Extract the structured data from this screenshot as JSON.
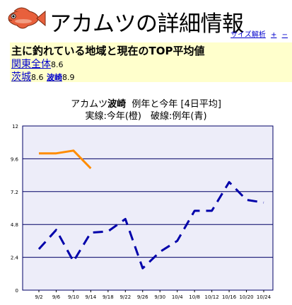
{
  "header": {
    "title": "アカムツの詳細情報",
    "links": [
      "サイズ解析",
      "+",
      "−"
    ]
  },
  "info": {
    "heading": "主に釣れている地域と現在のTOP平均値",
    "regions": [
      {
        "name": "関東全体",
        "value": "8.6"
      },
      {
        "name": "茨城",
        "value": "8.6"
      },
      {
        "name": "波崎",
        "value": "8.9"
      }
    ]
  },
  "chart_title": {
    "line1_prefix": "アカムツ",
    "line1_bold": "波崎",
    "line1_suffix": "例年と今年 [4日平均]",
    "line2": "実線:今年(橙)　破線:例年(青)"
  },
  "colors": {
    "this_year": "#ff8c00",
    "average": "#0000aa",
    "plot_bg": "#ededf9",
    "grid": "#000066"
  },
  "chart_data": {
    "type": "line",
    "title": "アカムツ波崎 例年と今年 [4日平均]",
    "subtitle": "実線:今年(橙) 破線:例年(青)",
    "categories": [
      "9/2",
      "9/6",
      "9/10",
      "9/14",
      "9/18",
      "9/22",
      "9/26",
      "9/30",
      "10/4",
      "10/8",
      "10/12",
      "10/16",
      "10/20",
      "10/24"
    ],
    "x_tick_labels": [
      "9/2",
      "9/6",
      "9/10",
      "9/14",
      "9/18",
      "9/22",
      "9/26",
      "9/30",
      "10/4",
      "10/8",
      "10/12",
      "10/16",
      "10/20",
      "10/24"
    ],
    "ylim": [
      0,
      12
    ],
    "yticks": [
      "0",
      "2.4",
      "4.8",
      "7.2",
      "9.6",
      "12"
    ],
    "grid": true,
    "series": [
      {
        "name": "今年",
        "style": "solid",
        "color": "#ff8c00",
        "values": [
          10.0,
          10.0,
          10.2,
          8.9,
          null,
          null,
          null,
          null,
          null,
          null,
          null,
          null,
          null,
          null
        ]
      },
      {
        "name": "例年",
        "style": "dashed",
        "color": "#0000aa",
        "values": [
          3.0,
          4.4,
          2.1,
          4.2,
          4.3,
          5.2,
          1.6,
          2.8,
          3.6,
          5.8,
          5.8,
          7.9,
          6.6,
          6.4
        ]
      }
    ]
  }
}
